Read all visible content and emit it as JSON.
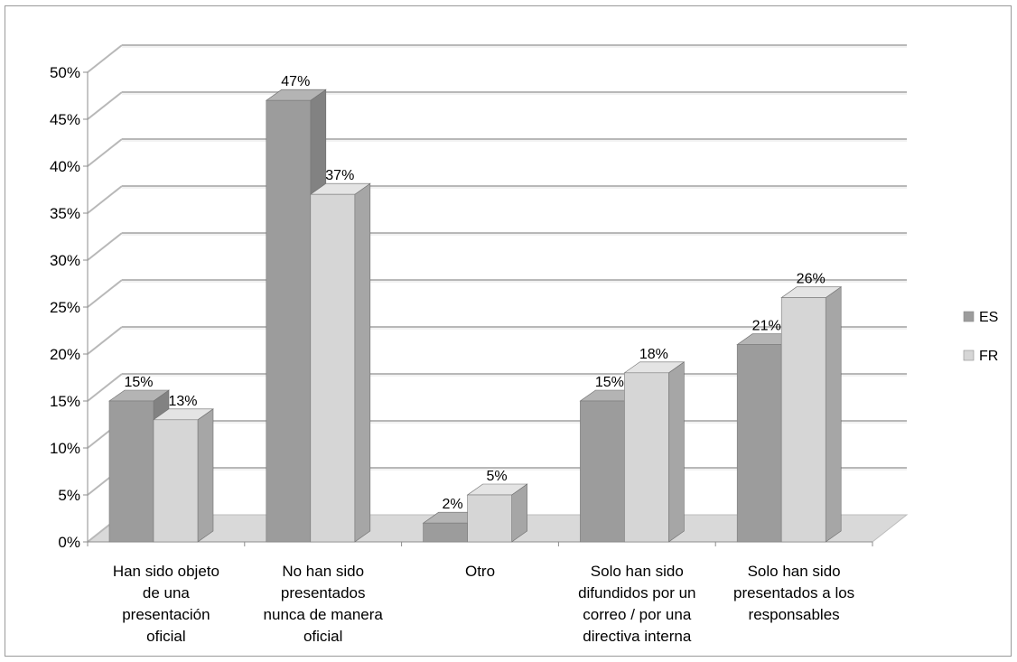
{
  "chart_data": {
    "type": "bar",
    "categories": [
      [
        "Han sido objeto",
        "de una",
        "presentación",
        "oficial"
      ],
      [
        "No han sido",
        "presentados",
        "nunca de manera",
        "oficial"
      ],
      [
        "Otro"
      ],
      [
        "Solo han sido",
        "difundidos por un",
        "correo / por una",
        "directiva interna"
      ],
      [
        "Solo han sido",
        "presentados a los",
        "responsables"
      ]
    ],
    "series": [
      {
        "name": "ES",
        "values": [
          15,
          47,
          2,
          15,
          21
        ],
        "color_front": "#9c9c9c",
        "color_side": "#828282",
        "color_top": "#b4b4b4"
      },
      {
        "name": "FR",
        "values": [
          13,
          37,
          5,
          18,
          26
        ],
        "color_front": "#d6d6d6",
        "color_side": "#a6a6a6",
        "color_top": "#e4e4e4"
      }
    ],
    "data_labels": [
      [
        "15%",
        "47%",
        "2%",
        "15%",
        "21%"
      ],
      [
        "13%",
        "37%",
        "5%",
        "18%",
        "26%"
      ]
    ],
    "y_ticks": [
      "0%",
      "5%",
      "10%",
      "15%",
      "20%",
      "25%",
      "30%",
      "35%",
      "40%",
      "45%",
      "50%"
    ],
    "ylim": [
      0,
      50
    ],
    "grid": true,
    "legend_position": "right",
    "title": "",
    "xlabel": "",
    "ylabel": ""
  }
}
